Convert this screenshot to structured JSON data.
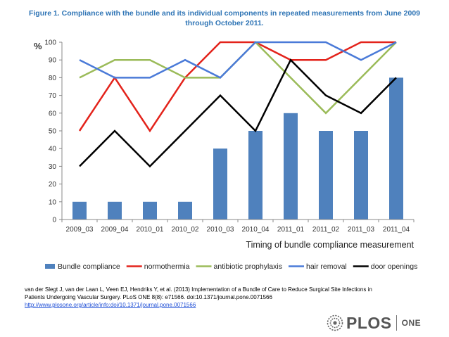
{
  "figure": {
    "title_line1": "Figure 1. Compliance with the bundle and its individual components in repeated measurements from June 2009",
    "title_line2": "through October 2011."
  },
  "chart_data": {
    "type": "bar+line",
    "categories": [
      "2009_03",
      "2009_04",
      "2010_01",
      "2010_02",
      "2010_03",
      "2010_04",
      "2011_01",
      "2011_02",
      "2011_03",
      "2011_04"
    ],
    "ylim": [
      0,
      100
    ],
    "yticks": [
      0,
      10,
      20,
      30,
      40,
      50,
      60,
      70,
      80,
      90,
      100
    ],
    "ylabel": "%",
    "xlabel": "Timing of bundle compliance measurement",
    "grid": false,
    "legend_position": "bottom",
    "series": [
      {
        "name": "Bundle compliance",
        "kind": "bar",
        "color": "#4f81bd",
        "values": [
          10,
          10,
          10,
          10,
          40,
          50,
          60,
          50,
          50,
          80
        ]
      },
      {
        "name": "normothermia",
        "kind": "line",
        "color": "#e3231b",
        "values": [
          50,
          80,
          50,
          80,
          100,
          100,
          90,
          90,
          100,
          100
        ]
      },
      {
        "name": "antibiotic prophylaxis",
        "kind": "line",
        "color": "#9bbb59",
        "values": [
          80,
          90,
          90,
          80,
          80,
          100,
          80,
          60,
          80,
          100
        ]
      },
      {
        "name": "hair removal",
        "kind": "line",
        "color": "#4a7ad8",
        "values": [
          90,
          80,
          80,
          90,
          80,
          100,
          100,
          100,
          90,
          100
        ]
      },
      {
        "name": "door openings",
        "kind": "line",
        "color": "#000000",
        "values": [
          30,
          50,
          30,
          50,
          70,
          50,
          90,
          70,
          60,
          80
        ]
      }
    ]
  },
  "citation": {
    "line1": "van der Slegt J, van der Laan L, Veen EJ, Hendriks Y, et al. (2013) Implementation of a Bundle of Care to Reduce Surgical Site Infections in",
    "line2": "Patients Undergoing Vascular Surgery. PLoS ONE 8(8): e71566. doi:10.1371/journal.pone.0071566",
    "link": "http://www.plosone.org/article/info:doi/10.1371/journal.pone.0071566"
  },
  "brand": {
    "name": "PLOS",
    "sub": "ONE",
    "icon": "plos-logo-icon"
  }
}
